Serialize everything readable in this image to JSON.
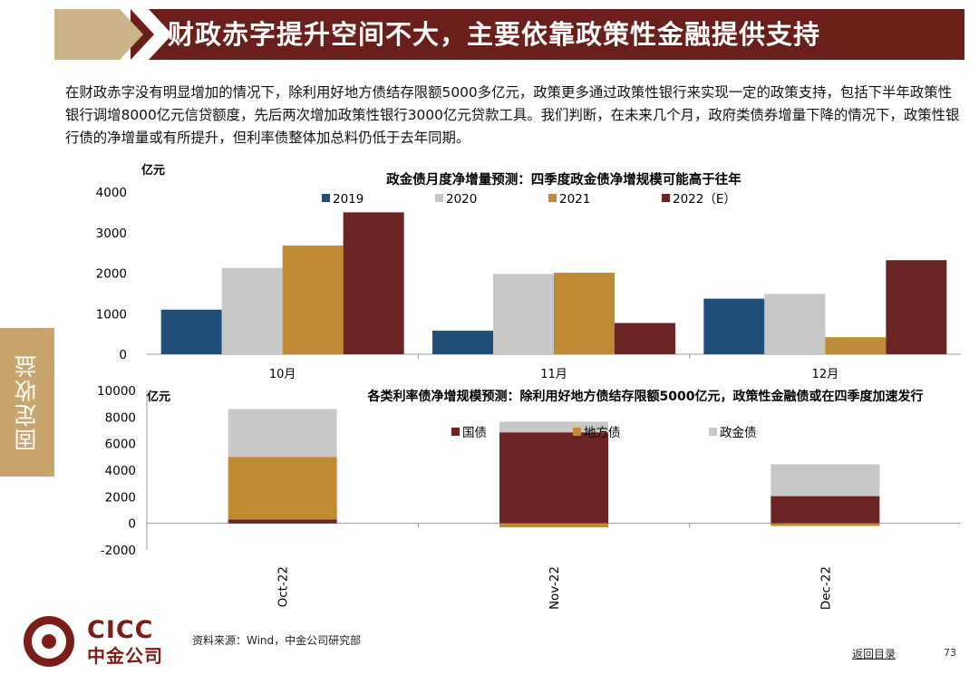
{
  "title": "财政赤字提升空间不大，主要依靠政策性金融提供支持",
  "intro": "在财政赤字没有明显增加的情况下，除利用好地方债结存限额5000多亿元，政策更多通过政策性银行来实现一定的政策支持，包括下半年政策性银行调增8000亿元信贷额度，先后两次增加政策性银行3000亿元贷款工具。我们判断，在未来几个月，政府类债券增量下降的情况下，政策性银行债的净增量或有所提升，但利率债整体加总料仍低于去年同期。",
  "side_tab": "固定收益",
  "source": "资料来源：Wind，中金公司研究部",
  "back_link": "返回目录",
  "page_number": "73",
  "logo": {
    "en": "CICC",
    "cn": "中金公司"
  },
  "colors": {
    "title_bg": "#6b1f1b",
    "side_tab": "#c9a46c",
    "blue": "#1f4e79",
    "gray": "#c8c8c8",
    "gold": "#c08a35",
    "maroon": "#6b2424"
  },
  "chart_data": [
    {
      "type": "bar",
      "title": "政金债月度净增量预测：四季度政金债净增规模可能高于往年",
      "ylabel": "亿元",
      "ylim": [
        0,
        4000
      ],
      "yticks": [
        0,
        1000,
        2000,
        3000,
        4000
      ],
      "categories": [
        "10月",
        "11月",
        "12月"
      ],
      "series": [
        {
          "name": "2019",
          "color": "#1f4e79",
          "values": [
            1100,
            580,
            1370
          ]
        },
        {
          "name": "2020",
          "color": "#c8c8c8",
          "values": [
            2130,
            1980,
            1490
          ]
        },
        {
          "name": "2021",
          "color": "#c08a35",
          "values": [
            2680,
            2010,
            420
          ]
        },
        {
          "name": "2022（E）",
          "color": "#6b2424",
          "values": [
            3500,
            770,
            2320
          ]
        }
      ],
      "legend": "top"
    },
    {
      "type": "bar",
      "stacked": true,
      "title": "各类利率债净增规模预测：除利用好地方债结存限额5000亿元，政策性金融债或在四季度加速发行",
      "ylabel": "亿元",
      "ylim": [
        -2000,
        10000
      ],
      "yticks": [
        -2000,
        0,
        2000,
        4000,
        6000,
        8000,
        10000
      ],
      "categories": [
        "Oct-22",
        "Nov-22",
        "Dec-22"
      ],
      "series": [
        {
          "name": "国债",
          "color": "#6b2424",
          "values": [
            300,
            6850,
            2050
          ]
        },
        {
          "name": "地方债",
          "color": "#c08a35",
          "values": [
            4700,
            -300,
            -200
          ]
        },
        {
          "name": "政金债",
          "color": "#c8c8c8",
          "values": [
            3600,
            800,
            2400
          ]
        }
      ],
      "legend": "inside-top"
    }
  ]
}
